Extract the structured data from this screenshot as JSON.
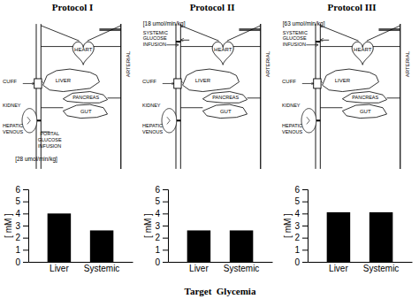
{
  "chart_data": [
    {
      "type": "bar",
      "title": "Protocol I",
      "annotations": [
        "CUFF",
        "KIDNEY",
        "HEPATIC\nVENOUS",
        "HEART",
        "LIVER",
        "PANCREAS",
        "GUT",
        "ARTERIAL",
        "PORTAL\nGLUCOSE\nINFUSION",
        "[28 umol/min/kg]"
      ],
      "categories": [
        "Liver",
        "Systemic"
      ],
      "values": [
        4.0,
        2.6
      ],
      "color": "#000000",
      "ylabel": "[ mM ]",
      "ylim": [
        0,
        6
      ],
      "yticks": [
        0,
        1,
        2,
        3,
        4,
        5,
        6
      ]
    },
    {
      "type": "bar",
      "title": "Protocol II",
      "subtitle": "[18 umol/min/kg]",
      "annotations": [
        "CUFF",
        "KIDNEY",
        "HEPATIC\nVENOUS",
        "HEART",
        "LIVER",
        "PANCREAS",
        "GUT",
        "ARTERIAL",
        "SYSTEMIC\nGLUCOSE\nINFUSION"
      ],
      "categories": [
        "Liver",
        "Systemic"
      ],
      "values": [
        2.6,
        2.6
      ],
      "color": "#000000",
      "ylabel": "[ mM ]",
      "xlabel": "Target  Glycemia",
      "ylim": [
        0,
        6
      ],
      "yticks": [
        0,
        1,
        2,
        3,
        4,
        5,
        6
      ]
    },
    {
      "type": "bar",
      "title": "Protocol III",
      "subtitle": "[63 umol/min/kg]",
      "annotations": [
        "CUFF",
        "KIDNEY",
        "HEPATIC\nVENOUS",
        "HEART",
        "LIVER",
        "PANCREAS",
        "GUT",
        "ARTERIAL",
        "SYSTEMIC\nGLUCOSE\nINFUSION"
      ],
      "categories": [
        "Liver",
        "Systemic"
      ],
      "values": [
        4.1,
        4.1
      ],
      "color": "#000000",
      "ylabel": "[ mM ]",
      "ylim": [
        0,
        6
      ],
      "yticks": [
        0,
        1,
        2,
        3,
        4,
        5,
        6
      ]
    }
  ]
}
